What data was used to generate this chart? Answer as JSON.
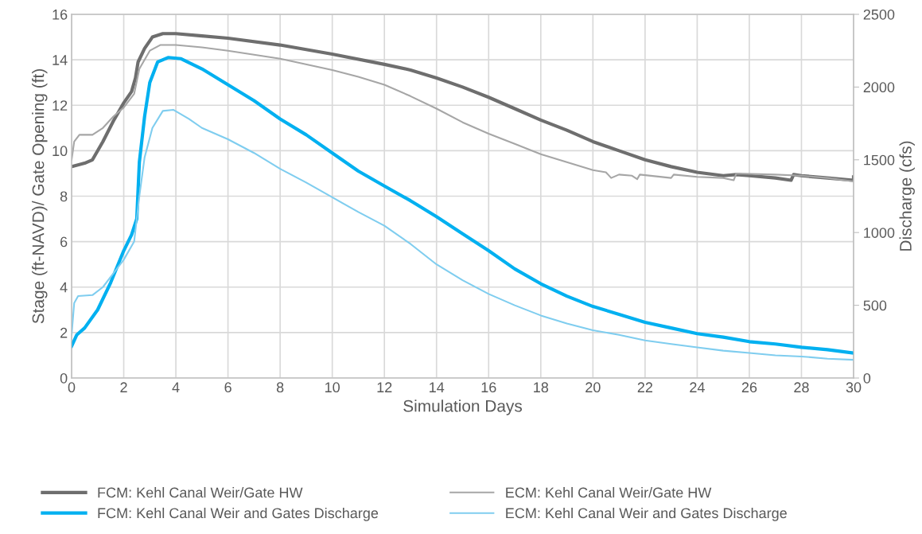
{
  "chart_data": {
    "type": "line",
    "xlabel": "Simulation Days",
    "ylabel": "Stage (ft-NAVD)/ Gate Opening (ft)",
    "y2label": "Discharge (cfs)",
    "xlim": [
      0,
      30
    ],
    "xticks": [
      0,
      2,
      4,
      6,
      8,
      10,
      12,
      14,
      16,
      18,
      20,
      22,
      24,
      26,
      28,
      30
    ],
    "ylim": [
      0,
      16
    ],
    "yticks": [
      0,
      2,
      4,
      6,
      8,
      10,
      12,
      14,
      16
    ],
    "y2lim": [
      0,
      2500
    ],
    "y2ticks": [
      0,
      500,
      1000,
      1500,
      2000,
      2500
    ],
    "grid": true,
    "legend": "bottom",
    "series": [
      {
        "name": "FCM: Kehl Canal Weir/Gate HW",
        "color": "#6e6e6e",
        "x": [
          0,
          0.5,
          0.8,
          1.2,
          1.6,
          2.0,
          2.3,
          2.45,
          2.55,
          2.8,
          3.1,
          3.5,
          4,
          5,
          6,
          8,
          10,
          12,
          13,
          14,
          15,
          16,
          17,
          18,
          19,
          20,
          21,
          22,
          23,
          24,
          25,
          25.5,
          26,
          27,
          27.6,
          27.7,
          28,
          29,
          30,
          30
        ],
        "values": [
          9.3,
          9.45,
          9.6,
          10.4,
          11.3,
          12.1,
          12.6,
          13.2,
          13.9,
          14.5,
          15.0,
          15.15,
          15.15,
          15.05,
          14.95,
          14.65,
          14.25,
          13.8,
          13.55,
          13.2,
          12.8,
          12.35,
          11.85,
          11.35,
          10.9,
          10.4,
          10.0,
          9.6,
          9.3,
          9.05,
          8.9,
          8.95,
          8.9,
          8.8,
          8.7,
          8.95,
          8.9,
          8.8,
          8.7,
          8.85
        ]
      },
      {
        "name": "ECM: Kehl Canal Weir/Gate HW",
        "color": "#a6a6a6",
        "x": [
          0,
          0.1,
          0.3,
          0.8,
          1.2,
          1.6,
          2.0,
          2.4,
          2.6,
          3.0,
          3.4,
          4,
          5,
          6,
          8,
          10,
          11,
          12,
          13,
          14,
          15,
          16,
          17,
          18,
          19,
          20,
          20.5,
          20.7,
          21,
          21.5,
          21.7,
          21.8,
          23,
          23.1,
          24,
          25,
          25.4,
          25.5,
          27,
          28,
          29,
          30
        ],
        "values": [
          9.6,
          10.4,
          10.7,
          10.7,
          11.0,
          11.5,
          11.9,
          12.5,
          13.6,
          14.4,
          14.65,
          14.65,
          14.55,
          14.4,
          14.05,
          13.55,
          13.25,
          12.9,
          12.4,
          11.85,
          11.25,
          10.75,
          10.3,
          9.85,
          9.5,
          9.15,
          9.05,
          8.8,
          8.95,
          8.9,
          8.75,
          8.95,
          8.8,
          8.95,
          8.85,
          8.8,
          8.7,
          9.0,
          8.95,
          8.9,
          8.8,
          8.65
        ]
      },
      {
        "name": "FCM: Kehl Canal Weir and Gates Discharge",
        "color": "#00b0f0",
        "axis": "y2",
        "x": [
          0,
          0.2,
          0.5,
          1.0,
          1.5,
          2.0,
          2.3,
          2.5,
          2.6,
          2.8,
          3.0,
          3.3,
          3.7,
          4.2,
          5,
          6,
          7,
          8,
          9,
          10,
          11,
          12,
          13,
          14,
          15,
          16,
          17,
          18,
          19,
          20,
          21,
          22,
          23,
          24,
          25,
          26,
          27,
          28,
          29,
          30
        ],
        "values": [
          219,
          297,
          344,
          469,
          656,
          875,
          984,
          1094,
          1484,
          1797,
          2031,
          2172,
          2203,
          2195,
          2125,
          2016,
          1906,
          1781,
          1672,
          1547,
          1422,
          1320,
          1219,
          1109,
          992,
          875,
          750,
          648,
          563,
          492,
          438,
          383,
          344,
          305,
          281,
          250,
          234,
          211,
          195,
          172
        ]
      },
      {
        "name": "ECM: Kehl Canal Weir and Gates Discharge",
        "color": "#7fcdef",
        "axis": "y2",
        "x": [
          0,
          0.1,
          0.25,
          0.8,
          1.2,
          1.6,
          2.0,
          2.4,
          2.6,
          2.8,
          3.1,
          3.5,
          3.9,
          4.5,
          5,
          6,
          7,
          8,
          9,
          10,
          11,
          12,
          13,
          14,
          15,
          16,
          17,
          18,
          19,
          20,
          21,
          22,
          23,
          24,
          25,
          26,
          27,
          28,
          29,
          30
        ],
        "values": [
          297,
          516,
          563,
          570,
          625,
          719,
          813,
          938,
          1250,
          1516,
          1719,
          1836,
          1844,
          1781,
          1719,
          1641,
          1547,
          1438,
          1344,
          1242,
          1141,
          1047,
          922,
          781,
          672,
          578,
          500,
          430,
          375,
          328,
          297,
          258,
          234,
          211,
          188,
          172,
          156,
          148,
          133,
          125
        ]
      }
    ]
  }
}
